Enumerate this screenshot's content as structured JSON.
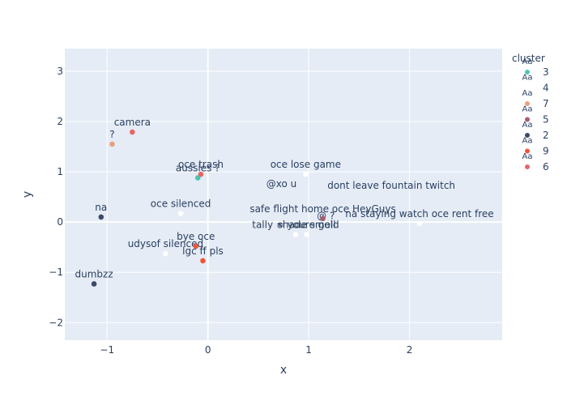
{
  "chart_data": {
    "type": "scatter",
    "xlabel": "x",
    "ylabel": "y",
    "xlim": [
      -1.42,
      2.92
    ],
    "ylim": [
      -2.35,
      3.45
    ],
    "x_ticks": [
      -1,
      0,
      1,
      2
    ],
    "x_tick_labels": [
      "−1",
      "0",
      "1",
      "2"
    ],
    "y_ticks": [
      -2,
      -1,
      0,
      1,
      2,
      3
    ],
    "y_tick_labels": [
      "−2",
      "−1",
      "0",
      "1",
      "2",
      "3"
    ],
    "grid": true,
    "legend_title": "cluster",
    "legend_position": "right",
    "series": [
      {
        "name": "3",
        "color": "#4DC3B2",
        "points": [
          {
            "x": -0.1,
            "y": 0.88,
            "label": "aussies ?"
          }
        ]
      },
      {
        "name": "4",
        "color": "#FFFFFF",
        "points": [
          {
            "x": -0.27,
            "y": 0.17,
            "label": "oce silenced"
          },
          {
            "x": 0.97,
            "y": 0.95,
            "label": "oce lose game"
          },
          {
            "x": 0.87,
            "y": -0.25,
            "label": "tally = youre gold"
          },
          {
            "x": 0.98,
            "y": -0.25,
            "label": "shade smell"
          },
          {
            "x": 2.1,
            "y": -0.03,
            "label": "na staying watch oce rent free"
          },
          {
            "x": -0.42,
            "y": -0.63,
            "label": "udysof silenced"
          }
        ]
      },
      {
        "name": "7",
        "color": "#E9A17C",
        "points": [
          {
            "x": -0.95,
            "y": 1.55,
            "label": "?"
          }
        ]
      },
      {
        "name": "5",
        "color": "#A65E6C",
        "points": [
          {
            "x": 1.14,
            "y": 0.07,
            "label": "safe flight home oce HeyGuys"
          }
        ]
      },
      {
        "name": "2",
        "color": "#3B4A66",
        "points": [
          {
            "x": -1.06,
            "y": 0.1,
            "label": "na"
          },
          {
            "x": -1.13,
            "y": -1.23,
            "label": "dumbzz"
          }
        ]
      },
      {
        "name": "9",
        "color": "#EF553B",
        "points": [
          {
            "x": -0.12,
            "y": -0.48,
            "label": "bye oce"
          },
          {
            "x": -0.05,
            "y": -0.77,
            "label": "lgc ff pls"
          }
        ]
      },
      {
        "name": "6",
        "color": "#E56666",
        "points": [
          {
            "x": -0.75,
            "y": 1.79,
            "label": "camera"
          },
          {
            "x": -0.07,
            "y": 0.95,
            "label": "oce trash"
          }
        ]
      }
    ],
    "extra_labels": [
      {
        "x": 0.73,
        "y": 0.57,
        "label": "@xo u"
      },
      {
        "x": 1.82,
        "y": 0.53,
        "label": "dont leave fountain twitch"
      },
      {
        "x": 1.17,
        "y": -0.07,
        "label": "@ ?"
      }
    ]
  }
}
